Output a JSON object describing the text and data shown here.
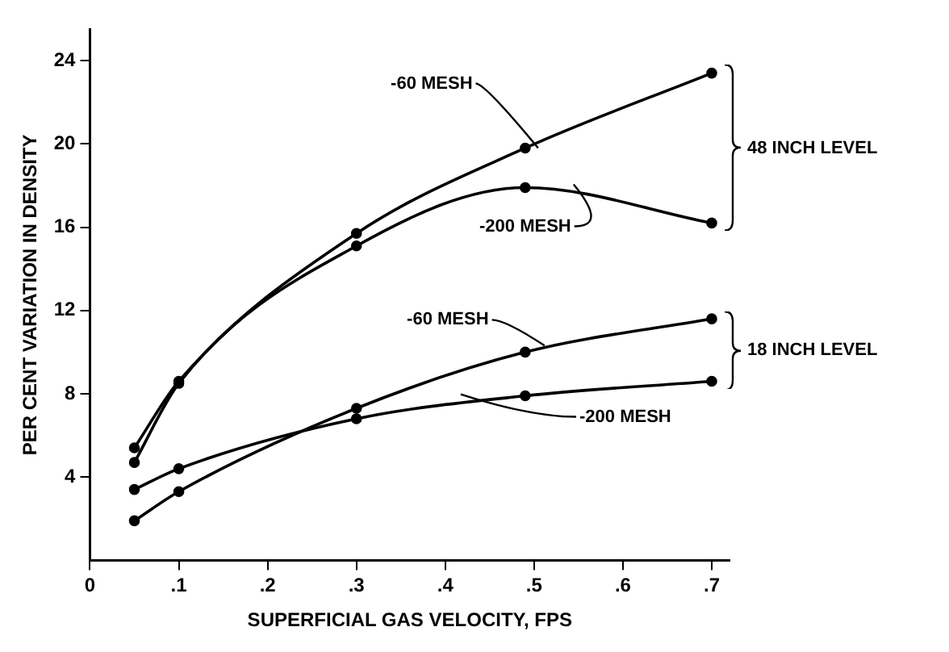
{
  "chart_data": {
    "type": "line",
    "xlabel": "SUPERFICIAL GAS VELOCITY, FPS",
    "ylabel": "PER CENT VARIATION IN DENSITY",
    "xlim": [
      0,
      0.72
    ],
    "xticks": [
      0,
      {
        "value": 0.1,
        "label": ".1"
      },
      {
        "value": 0.2,
        "label": ".2"
      },
      {
        "value": 0.3,
        "label": ".3"
      },
      {
        "value": 0.4,
        "label": ".4"
      },
      {
        "value": 0.5,
        "label": ".5"
      },
      {
        "value": 0.6,
        "label": ".6"
      },
      {
        "value": 0.7,
        "label": ".7"
      }
    ],
    "ylim": [
      0,
      25.5
    ],
    "yticks": [
      4,
      8,
      12,
      16,
      20,
      24
    ],
    "x": [
      0.05,
      0.1,
      0.3,
      0.49,
      0.7
    ],
    "series": [
      {
        "name": "-60 MESH",
        "color": "#000000",
        "values": [
          5.4,
          8.6,
          15.7,
          19.8,
          23.4
        ]
      },
      {
        "name": "-200 MESH",
        "color": "#000000",
        "values": [
          4.7,
          8.5,
          15.1,
          17.9,
          16.2
        ]
      },
      {
        "name": "-60 MESH",
        "color": "#000000",
        "values": [
          1.9,
          3.3,
          7.3,
          10.0,
          11.6
        ]
      },
      {
        "name": "-200 MESH",
        "color": "#000000",
        "values": [
          3.4,
          4.4,
          6.8,
          7.9,
          8.6
        ]
      }
    ],
    "annotations": [
      "48 INCH LEVEL",
      "18 INCH LEVEL"
    ],
    "grid": false,
    "legend": false,
    "marker": "circle",
    "line_style": "solid"
  }
}
